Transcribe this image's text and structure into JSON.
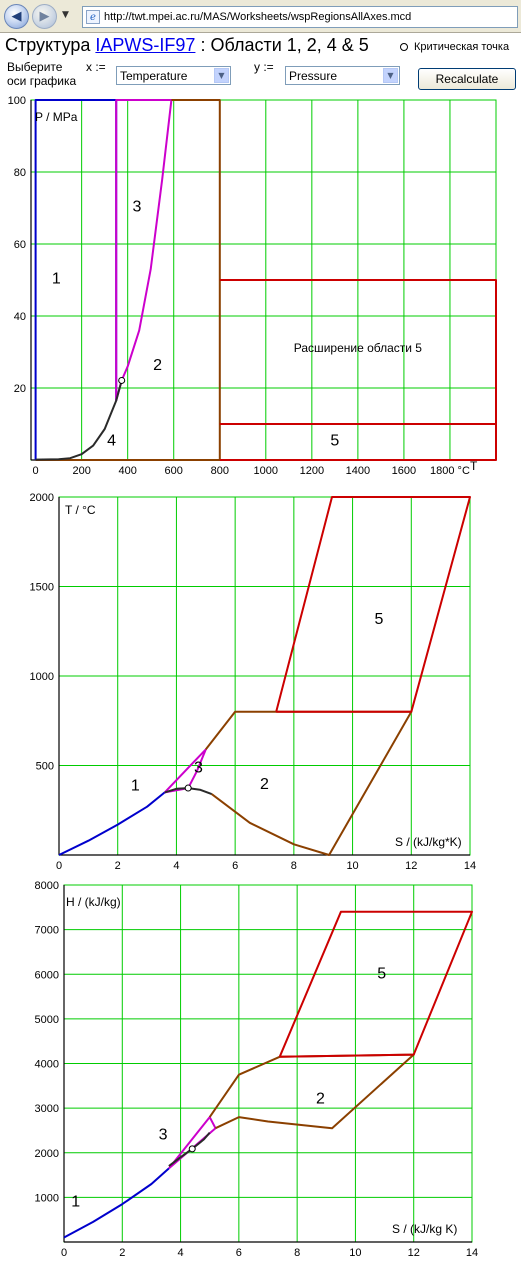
{
  "browser": {
    "url": "http://twt.mpei.ac.ru/MAS/Worksheets/wspRegionsAllAxes.mcd",
    "back_icon": "back-arrow-icon",
    "forward_icon": "forward-arrow-icon"
  },
  "header": {
    "title_prefix": "Структура ",
    "title_link": "IAPWS-IF97",
    "title_suffix": " : Области 1, 2, 4 & 5",
    "critical_point_label": "Критическая точка",
    "axis_prompt_line1": "Выберите",
    "axis_prompt_line2": "оси графика",
    "x_label": "x :=",
    "y_label": "y :=",
    "x_select": "Temperature",
    "y_select": "Pressure",
    "recalc_label": "Recalculate"
  },
  "colors": {
    "grid": "#00cc00",
    "region1": "#0000cc",
    "region3": "#cc00cc",
    "region2": "#8b4000",
    "region5": "#cc0000",
    "saturation": "#2a2a2a"
  },
  "chart_data": [
    {
      "type": "line",
      "title": "",
      "xlabel": "T",
      "xunit": "°C",
      "ylabel": "P / MPa",
      "xlim": [
        -20,
        2000
      ],
      "ylim": [
        0,
        100
      ],
      "xticks": [
        0,
        200,
        400,
        600,
        800,
        1000,
        1200,
        1400,
        1600,
        1800
      ],
      "yticks": [
        20,
        40,
        60,
        80,
        100
      ],
      "grid": true,
      "region_labels": [
        {
          "text": "1",
          "x": 90,
          "y": 49
        },
        {
          "text": "3",
          "x": 440,
          "y": 69
        },
        {
          "text": "2",
          "x": 530,
          "y": 25
        },
        {
          "text": "4",
          "x": 330,
          "y": 4
        },
        {
          "text": "5",
          "x": 1300,
          "y": 4
        },
        {
          "text": "Расширение области 5",
          "x": 1400,
          "y": 30
        }
      ],
      "critical_point": {
        "x": 374,
        "y": 22.1
      },
      "series": [
        {
          "color": "region1",
          "x": [
            0,
            0,
            350,
            350
          ],
          "y": [
            0,
            100,
            100,
            16.5
          ]
        },
        {
          "color": "region3",
          "x": [
            350,
            350,
            590,
            550,
            500,
            450,
            400,
            374,
            350
          ],
          "y": [
            16.5,
            100,
            100,
            78,
            53,
            36,
            26,
            22.1,
            16.5
          ]
        },
        {
          "color": "region2",
          "x": [
            590,
            800,
            800,
            0
          ],
          "y": [
            100,
            100,
            0,
            0
          ]
        },
        {
          "color": "saturation",
          "x": [
            0,
            100,
            150,
            200,
            250,
            300,
            350,
            374
          ],
          "y": [
            0.1,
            0.2,
            0.5,
            1.6,
            4.0,
            8.6,
            16.5,
            22.1
          ]
        },
        {
          "color": "region5",
          "x": [
            800,
            2000,
            2000,
            800
          ],
          "y": [
            10,
            10,
            0,
            0
          ]
        },
        {
          "color": "region5",
          "x": [
            800,
            2000,
            2000,
            800
          ],
          "y": [
            50,
            50,
            10,
            10
          ]
        }
      ]
    },
    {
      "type": "line",
      "title": "",
      "xlabel": "S / (kJ/kg*K)",
      "ylabel": "T / °C",
      "xlim": [
        0,
        14
      ],
      "ylim": [
        0,
        2000
      ],
      "xticks": [
        0,
        2,
        4,
        6,
        8,
        10,
        12,
        14
      ],
      "yticks": [
        500,
        1000,
        1500,
        2000
      ],
      "grid": true,
      "region_labels": [
        {
          "text": "1",
          "x": 2.6,
          "y": 360
        },
        {
          "text": "3",
          "x": 4.75,
          "y": 460
        },
        {
          "text": "2",
          "x": 7.0,
          "y": 370
        },
        {
          "text": "5",
          "x": 10.9,
          "y": 1290
        }
      ],
      "critical_point": {
        "x": 4.4,
        "y": 374
      },
      "series": [
        {
          "color": "region1",
          "x": [
            0,
            1,
            2,
            3,
            3.6
          ],
          "y": [
            0,
            80,
            170,
            270,
            350
          ]
        },
        {
          "color": "region3",
          "x": [
            3.6,
            5.0,
            4.7,
            4.4,
            3.6
          ],
          "y": [
            350,
            590,
            470,
            374,
            350
          ]
        },
        {
          "color": "saturation",
          "x": [
            3.6,
            4.0,
            4.4,
            4.8,
            5.2
          ],
          "y": [
            350,
            370,
            374,
            365,
            340
          ]
        },
        {
          "color": "region2",
          "x": [
            5.0,
            6.0,
            12.0,
            9.2,
            8.0,
            6.5,
            5.2
          ],
          "y": [
            590,
            800,
            800,
            0,
            60,
            180,
            340
          ]
        },
        {
          "color": "region5",
          "x": [
            7.4,
            9.3,
            14.0,
            12.0,
            7.4
          ],
          "y": [
            800,
            2000,
            2000,
            800,
            800
          ]
        }
      ]
    },
    {
      "type": "line",
      "title": "",
      "xlabel": "S / (kJ/kg K)",
      "ylabel": "H / (kJ/kg)",
      "xlim": [
        0,
        14
      ],
      "ylim": [
        0,
        8000
      ],
      "xticks": [
        0,
        2,
        4,
        6,
        8,
        10,
        12,
        14
      ],
      "yticks": [
        1000,
        2000,
        3000,
        4000,
        5000,
        6000,
        7000,
        8000
      ],
      "grid": true,
      "region_labels": [
        {
          "text": "1",
          "x": 0.4,
          "y": 800
        },
        {
          "text": "3",
          "x": 3.4,
          "y": 2300
        },
        {
          "text": "2",
          "x": 8.8,
          "y": 3100
        },
        {
          "text": "5",
          "x": 10.9,
          "y": 5900
        }
      ],
      "critical_point": {
        "x": 4.4,
        "y": 2087
      },
      "series": [
        {
          "color": "region1",
          "x": [
            0,
            1,
            2,
            3,
            3.6
          ],
          "y": [
            100,
            450,
            850,
            1300,
            1650
          ]
        },
        {
          "color": "region3",
          "x": [
            3.6,
            5.0,
            5.2,
            3.6
          ],
          "y": [
            1650,
            2800,
            2550,
            1650
          ]
        },
        {
          "color": "saturation",
          "x": [
            3.6,
            4.0,
            4.4,
            4.8,
            5.0
          ],
          "y": [
            1700,
            1900,
            2087,
            2300,
            2450
          ]
        },
        {
          "color": "region2",
          "x": [
            5.0,
            6.0,
            7.4,
            12.0,
            9.2,
            7.0,
            6.0,
            5.2
          ],
          "y": [
            2800,
            3750,
            4150,
            4200,
            2550,
            2700,
            2800,
            2550
          ]
        },
        {
          "color": "region5",
          "x": [
            7.4,
            9.5,
            14.0,
            12.0,
            7.4
          ],
          "y": [
            4150,
            7400,
            7400,
            4200,
            4150
          ]
        }
      ]
    }
  ]
}
